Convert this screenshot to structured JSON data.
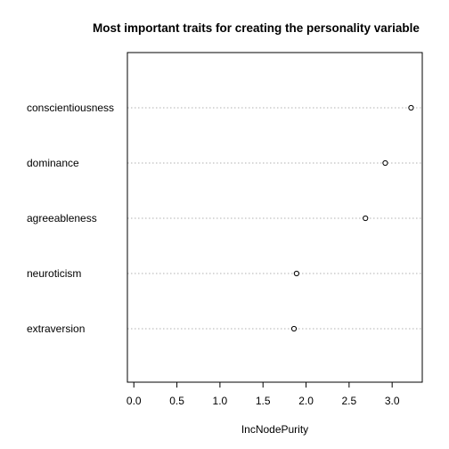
{
  "chart_data": {
    "type": "scatter",
    "title": "Most important traits for creating the personality variable",
    "xlabel": "IncNodePurity",
    "ylabel": "",
    "xlim": [
      -0.075,
      3.35
    ],
    "x_ticks": [
      "0.0",
      "0.5",
      "1.0",
      "1.5",
      "2.0",
      "2.5",
      "3.0"
    ],
    "categories": [
      "conscientiousness",
      "dominance",
      "agreeableness",
      "neuroticism",
      "extraversion"
    ],
    "values": [
      3.22,
      2.92,
      2.69,
      1.89,
      1.86
    ],
    "grid": "horizontal dotted lines at each category",
    "legend": "none"
  }
}
